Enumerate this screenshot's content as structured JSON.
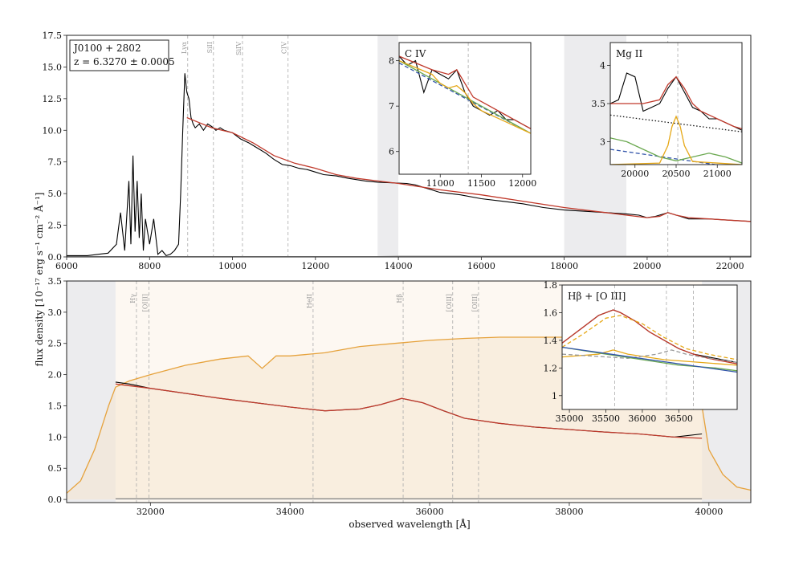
{
  "chart_data": [
    {
      "type": "line",
      "panel": "top",
      "xlim": [
        6000,
        22500
      ],
      "ylim": [
        0,
        17.5
      ],
      "xticks": [
        6000,
        8000,
        10000,
        12000,
        14000,
        16000,
        18000,
        20000,
        22000
      ],
      "yticks": [
        0.0,
        2.5,
        5.0,
        7.5,
        10.0,
        12.5,
        15.0,
        17.5
      ],
      "ytick_labels": [
        "0.0",
        "2.5",
        "5.0",
        "7.5",
        "10.0",
        "12.5",
        "15.0",
        "17.5"
      ],
      "object_box": {
        "name": "J0100 + 2802",
        "redshift": "z = 6.3270 ± 0.0005"
      },
      "line_markers": [
        {
          "label": "Lyα",
          "x": 8920
        },
        {
          "label": "SiII",
          "x": 9540
        },
        {
          "label": "SiIV",
          "x": 10240
        },
        {
          "label": "CIV",
          "x": 11340
        }
      ],
      "extra_markers": [
        20500
      ],
      "gaps": [
        [
          13500,
          14000
        ],
        [
          18000,
          19500
        ]
      ],
      "series": [
        {
          "role": "spectrum",
          "color": "#000000",
          "x": [
            6000,
            6500,
            7000,
            7200,
            7300,
            7400,
            7500,
            7550,
            7600,
            7650,
            7700,
            7750,
            7800,
            7850,
            7900,
            8000,
            8100,
            8200,
            8300,
            8400,
            8500,
            8600,
            8700,
            8750,
            8800,
            8850,
            8900,
            8950,
            9000,
            9050,
            9100,
            9200,
            9300,
            9400,
            9500,
            9600,
            9700,
            9800,
            10000,
            10200,
            10400,
            10600,
            10800,
            11000,
            11200,
            11400,
            11600,
            11800,
            12000,
            12200,
            12500,
            12800,
            13000,
            13200,
            13500,
            14200,
            14400,
            14600,
            14800,
            15000,
            15500,
            16000,
            16500,
            17000,
            17500,
            18000,
            19500,
            19800,
            20000,
            20200,
            20400,
            20500,
            20600,
            20800,
            21000,
            21500,
            22000,
            22500
          ],
          "y": [
            0.1,
            0.1,
            0.3,
            1.0,
            3.5,
            0.5,
            6.0,
            1.0,
            8.0,
            2.0,
            6.0,
            1.5,
            5.0,
            0.5,
            3.0,
            1.0,
            3.0,
            0.2,
            0.5,
            0.1,
            0.2,
            0.5,
            1.0,
            5.0,
            10.0,
            14.5,
            13.0,
            12.5,
            11.0,
            10.5,
            10.2,
            10.5,
            10.0,
            10.5,
            10.3,
            10.0,
            10.2,
            10.0,
            9.8,
            9.3,
            9.0,
            8.6,
            8.2,
            7.7,
            7.3,
            7.2,
            7.0,
            6.9,
            6.7,
            6.5,
            6.4,
            6.2,
            6.1,
            6.0,
            5.9,
            5.8,
            5.7,
            5.5,
            5.3,
            5.1,
            4.9,
            4.6,
            4.4,
            4.2,
            3.9,
            3.7,
            3.4,
            3.3,
            3.1,
            3.2,
            3.4,
            3.5,
            3.4,
            3.2,
            3.0,
            3.0,
            2.9,
            2.8
          ]
        },
        {
          "role": "model",
          "color": "#c0392b",
          "x": [
            8900,
            9200,
            9500,
            10000,
            10500,
            11000,
            11500,
            12000,
            12500,
            13000,
            13500,
            14000,
            15000,
            16000,
            17000,
            18000,
            19000,
            19500,
            20000,
            20300,
            20500,
            20700,
            21000,
            21500,
            22000,
            22500
          ],
          "y": [
            11.0,
            10.6,
            10.2,
            9.8,
            9.0,
            8.0,
            7.4,
            7.0,
            6.5,
            6.2,
            6.0,
            5.8,
            5.3,
            4.9,
            4.4,
            3.9,
            3.5,
            3.3,
            3.1,
            3.2,
            3.5,
            3.3,
            3.1,
            3.0,
            2.9,
            2.8
          ]
        },
        {
          "role": "error",
          "color": "#999999",
          "x": [
            6000,
            13500,
            14000,
            18000,
            19500,
            22500
          ],
          "y": [
            0.02,
            0.02,
            0.05,
            0.05,
            0.05,
            0.05
          ]
        }
      ]
    },
    {
      "type": "line",
      "panel": "top-inset-CIV",
      "title": "C IV",
      "xlim": [
        10500,
        12100
      ],
      "ylim": [
        5.5,
        8.4
      ],
      "xticks": [
        11000,
        11500,
        12000
      ],
      "yticks": [
        6,
        7,
        8
      ],
      "marker": 11340,
      "series": [
        {
          "role": "data",
          "color": "#000000",
          "x": [
            10500,
            10600,
            10700,
            10800,
            10900,
            11000,
            11100,
            11200,
            11300,
            11400,
            11500,
            11600,
            11700,
            11800,
            11900,
            12000,
            12100
          ],
          "y": [
            8.1,
            7.9,
            8.0,
            7.3,
            7.8,
            7.7,
            7.6,
            7.8,
            7.3,
            7.0,
            6.9,
            6.8,
            6.9,
            6.7,
            6.7,
            6.6,
            6.5
          ]
        },
        {
          "role": "model",
          "color": "#c0392b",
          "x": [
            10500,
            10700,
            10900,
            11000,
            11100,
            11200,
            11300,
            11400,
            11600,
            11800,
            12000,
            12100
          ],
          "y": [
            8.1,
            7.95,
            7.8,
            7.75,
            7.7,
            7.8,
            7.5,
            7.2,
            7.0,
            6.8,
            6.6,
            6.5
          ]
        },
        {
          "role": "continuum",
          "color": "#3355aa",
          "dashed": true,
          "x": [
            10500,
            12100
          ],
          "y": [
            7.95,
            6.4
          ]
        },
        {
          "role": "broad",
          "color": "#6aa84f",
          "x": [
            10500,
            12100
          ],
          "y": [
            8.0,
            6.4
          ]
        },
        {
          "role": "component",
          "color": "#e6a817",
          "x": [
            10500,
            10700,
            10900,
            11000,
            11100,
            11200,
            11300,
            11400,
            11500,
            12100
          ],
          "y": [
            8.0,
            7.85,
            7.7,
            7.5,
            7.4,
            7.45,
            7.3,
            7.05,
            6.9,
            6.4
          ]
        }
      ]
    },
    {
      "type": "line",
      "panel": "top-inset-MgII",
      "title": "Mg II",
      "xlim": [
        19700,
        21300
      ],
      "ylim": [
        2.7,
        4.3
      ],
      "xticks": [
        20000,
        20500,
        21000
      ],
      "yticks": [
        3.0,
        3.5,
        4.0
      ],
      "marker": 20520,
      "series": [
        {
          "role": "data",
          "color": "#000000",
          "x": [
            19700,
            19800,
            19900,
            20000,
            20100,
            20200,
            20300,
            20400,
            20500,
            20600,
            20700,
            20800,
            20900,
            21000,
            21100,
            21200,
            21300
          ],
          "y": [
            3.5,
            3.55,
            3.9,
            3.85,
            3.4,
            3.45,
            3.5,
            3.7,
            3.85,
            3.65,
            3.45,
            3.4,
            3.3,
            3.3,
            3.25,
            3.2,
            3.15
          ]
        },
        {
          "role": "model",
          "color": "#c0392b",
          "x": [
            19700,
            19900,
            20100,
            20300,
            20400,
            20500,
            20600,
            20700,
            20800,
            21000,
            21200,
            21300
          ],
          "y": [
            3.5,
            3.5,
            3.5,
            3.55,
            3.75,
            3.85,
            3.7,
            3.5,
            3.4,
            3.3,
            3.2,
            3.17
          ]
        },
        {
          "role": "continuum",
          "color": "#111111",
          "dotted": true,
          "x": [
            19700,
            21300
          ],
          "y": [
            3.35,
            3.13
          ]
        },
        {
          "role": "power-law",
          "color": "#3355aa",
          "dashed": true,
          "x": [
            19700,
            21300
          ],
          "y": [
            2.9,
            2.65
          ]
        },
        {
          "role": "FeII",
          "color": "#6aa84f",
          "x": [
            19700,
            19900,
            20100,
            20300,
            20500,
            20700,
            20900,
            21100,
            21300
          ],
          "y": [
            3.05,
            3.0,
            2.9,
            2.8,
            2.75,
            2.8,
            2.85,
            2.8,
            2.72
          ]
        },
        {
          "role": "MgII-line",
          "color": "#e6a817",
          "x": [
            19700,
            20300,
            20400,
            20450,
            20500,
            20550,
            20600,
            20700,
            21300
          ],
          "y": [
            2.7,
            2.72,
            2.95,
            3.2,
            3.33,
            3.2,
            2.95,
            2.74,
            2.7
          ]
        }
      ]
    },
    {
      "type": "line",
      "panel": "bottom",
      "xlabel": "observed wavelength [Å]",
      "ylabel": "flux density [10⁻¹⁷ erg s⁻¹ cm⁻² Å⁻¹]",
      "xlim": [
        30800,
        40600
      ],
      "ylim": [
        -0.05,
        3.5
      ],
      "xticks": [
        32000,
        34000,
        36000,
        38000,
        40000
      ],
      "yticks": [
        0.0,
        0.5,
        1.0,
        1.5,
        2.0,
        2.5,
        3.0,
        3.5
      ],
      "ytick_labels": [
        "0.0",
        "0.5",
        "1.0",
        "1.5",
        "2.0",
        "2.5",
        "3.0",
        "3.5"
      ],
      "line_markers": [
        {
          "label": "Hγ",
          "x": 31800
        },
        {
          "label": "[OIII]",
          "x": 31980
        },
        {
          "label": "HeII",
          "x": 34330
        },
        {
          "label": "Hβ",
          "x": 35620
        },
        {
          "label": "[OIII]",
          "x": 36330
        },
        {
          "label": "[OIII]",
          "x": 36700
        }
      ],
      "series": [
        {
          "role": "throughput",
          "color": "#e6a23c",
          "x": [
            30800,
            31000,
            31200,
            31400,
            31500,
            31700,
            32000,
            32500,
            33000,
            33400,
            33600,
            33700,
            33800,
            34000,
            34500,
            35000,
            35500,
            36000,
            36500,
            37000,
            37500,
            38000,
            38500,
            39000,
            39500,
            39800,
            39900,
            40000,
            40200,
            40400,
            40600
          ],
          "y": [
            0.1,
            0.3,
            0.8,
            1.5,
            1.8,
            1.9,
            2.0,
            2.15,
            2.25,
            2.3,
            2.1,
            2.2,
            2.3,
            2.3,
            2.35,
            2.45,
            2.5,
            2.55,
            2.58,
            2.6,
            2.6,
            2.6,
            2.6,
            2.6,
            2.55,
            2.4,
            1.5,
            0.8,
            0.4,
            0.2,
            0.15
          ]
        },
        {
          "role": "spectrum",
          "color": "#000000",
          "x": [
            31500,
            31700,
            32000,
            32500,
            33000,
            33500,
            34000,
            34500,
            35000,
            35300,
            35600,
            35900,
            36200,
            36500,
            37000,
            37500,
            38000,
            38500,
            39000,
            39500,
            39900
          ],
          "y": [
            1.88,
            1.85,
            1.78,
            1.7,
            1.62,
            1.55,
            1.48,
            1.42,
            1.45,
            1.52,
            1.62,
            1.55,
            1.42,
            1.3,
            1.22,
            1.16,
            1.12,
            1.08,
            1.05,
            1.0,
            1.05
          ]
        },
        {
          "role": "model",
          "color": "#c0392b",
          "x": [
            31500,
            32000,
            32500,
            33000,
            33500,
            34000,
            34500,
            35000,
            35300,
            35600,
            35900,
            36200,
            36500,
            37000,
            37500,
            38000,
            38500,
            39000,
            39500,
            39900
          ],
          "y": [
            1.85,
            1.78,
            1.7,
            1.62,
            1.55,
            1.48,
            1.42,
            1.45,
            1.52,
            1.62,
            1.55,
            1.42,
            1.3,
            1.22,
            1.16,
            1.12,
            1.08,
            1.05,
            1.0,
            0.98
          ]
        },
        {
          "role": "error",
          "color": "#888888",
          "x": [
            31500,
            39900
          ],
          "y": [
            0.01,
            0.01
          ]
        }
      ]
    },
    {
      "type": "line",
      "panel": "bottom-inset-Hbeta",
      "title": "Hβ + [O III]",
      "xlim": [
        34900,
        37300
      ],
      "ylim": [
        0.9,
        1.8
      ],
      "xticks": [
        35000,
        35500,
        36000,
        36500
      ],
      "yticks": [
        1.0,
        1.2,
        1.4,
        1.6,
        1.8
      ],
      "markers": [
        35620,
        36330,
        36700
      ],
      "series": [
        {
          "role": "data",
          "color": "#000000",
          "x": [
            34900,
            35000,
            35200,
            35400,
            35600,
            35700,
            35900,
            36100,
            36300,
            36500,
            36700,
            36900,
            37100,
            37300
          ],
          "y": [
            1.38,
            1.42,
            1.5,
            1.58,
            1.62,
            1.6,
            1.54,
            1.46,
            1.4,
            1.34,
            1.3,
            1.28,
            1.26,
            1.24
          ]
        },
        {
          "role": "model",
          "color": "#c0392b",
          "x": [
            34900,
            35000,
            35200,
            35400,
            35600,
            35700,
            35900,
            36100,
            36300,
            36500,
            36700,
            36900,
            37100,
            37300
          ],
          "y": [
            1.38,
            1.42,
            1.5,
            1.58,
            1.62,
            1.6,
            1.54,
            1.46,
            1.4,
            1.34,
            1.3,
            1.27,
            1.25,
            1.23
          ]
        },
        {
          "role": "broad-Hbeta",
          "color": "#e6a817",
          "dashed": true,
          "x": [
            34900,
            35200,
            35500,
            35700,
            36000,
            36300,
            36600,
            36900,
            37300
          ],
          "y": [
            1.35,
            1.45,
            1.56,
            1.58,
            1.52,
            1.42,
            1.34,
            1.3,
            1.26
          ]
        },
        {
          "role": "narrow",
          "color": "#e6a817",
          "x": [
            34900,
            35400,
            35600,
            35800,
            36300,
            37300
          ],
          "y": [
            1.28,
            1.3,
            1.33,
            1.3,
            1.26,
            1.22
          ]
        },
        {
          "role": "OIII",
          "color": "#999999",
          "dashed": true,
          "x": [
            34900,
            35800,
            36200,
            36400,
            36600,
            36800,
            37300
          ],
          "y": [
            1.3,
            1.27,
            1.3,
            1.33,
            1.3,
            1.28,
            1.24
          ]
        },
        {
          "role": "FeII",
          "color": "#6aa84f",
          "x": [
            34900,
            35500,
            36000,
            36500,
            37000,
            37300
          ],
          "y": [
            1.35,
            1.3,
            1.26,
            1.22,
            1.2,
            1.18
          ]
        },
        {
          "role": "continuum",
          "color": "#3355aa",
          "x": [
            34900,
            37300
          ],
          "y": [
            1.35,
            1.17
          ]
        }
      ]
    }
  ]
}
